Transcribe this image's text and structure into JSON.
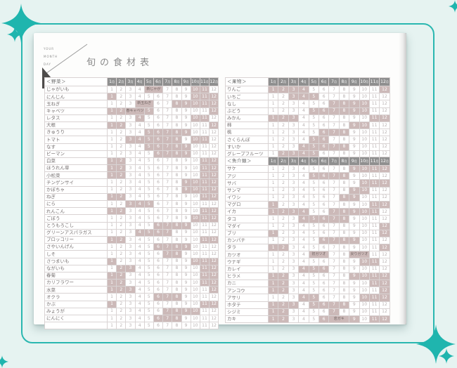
{
  "page": {
    "logo_lines": [
      "YOUR",
      "MONTH",
      "DAY"
    ],
    "title": "旬の食材表"
  },
  "months": {
    "numbers": [
      "1",
      "2",
      "3",
      "4",
      "5",
      "6",
      "7",
      "8",
      "9",
      "10",
      "11",
      "12"
    ],
    "suffix": "月"
  },
  "colors": {
    "accent": "#2ab7b0",
    "highlight": "#ccb9b8",
    "header_gray": "#8f8f8f"
  },
  "tables": [
    {
      "id": "veg-table",
      "group": "＜野菜＞",
      "rows": [
        {
          "label": "じゃがいも",
          "highlight": [
            10,
            11
          ],
          "merges": [
            {
              "start": 5,
              "end": 6,
              "label": "新じゃが"
            }
          ]
        },
        {
          "label": "にんじん",
          "highlight": [
            1,
            10,
            11,
            12
          ]
        },
        {
          "label": "玉ねぎ",
          "highlight": [
            8,
            9,
            10,
            11,
            12
          ],
          "merges": [
            {
              "start": 4,
              "end": 5,
              "label": "新玉ねぎ"
            }
          ]
        },
        {
          "label": "キャベツ",
          "highlight": [
            1,
            2,
            5,
            12
          ],
          "merges": [
            {
              "start": 3,
              "end": 4,
              "label": "春キャベツ"
            }
          ]
        },
        {
          "label": "レタス",
          "highlight": [
            4,
            10,
            11
          ]
        },
        {
          "label": "大根",
          "highlight": [
            1,
            2,
            12
          ]
        },
        {
          "label": "きゅうり",
          "highlight": [
            5,
            6,
            7,
            8,
            9
          ]
        },
        {
          "label": "トマト",
          "highlight": [
            3,
            4,
            5,
            6,
            7,
            8,
            10,
            11
          ]
        },
        {
          "label": "なす",
          "highlight": [
            5,
            6,
            7,
            8,
            9
          ]
        },
        {
          "label": "ピーマン",
          "highlight": [
            6,
            7,
            8,
            9
          ]
        },
        {
          "label": "白菜",
          "highlight": [
            1,
            2,
            11,
            12
          ]
        },
        {
          "label": "ほうれん草",
          "highlight": [
            1,
            2,
            11,
            12
          ]
        },
        {
          "label": "小松菜",
          "highlight": [
            1,
            2,
            11,
            12
          ]
        },
        {
          "label": "チンゲンサイ",
          "highlight": [
            9,
            10,
            11,
            12
          ]
        },
        {
          "label": "かぼちゃ",
          "highlight": [
            9,
            10,
            11,
            12
          ]
        },
        {
          "label": "ねぎ",
          "highlight": [
            1,
            2,
            11,
            12
          ]
        },
        {
          "label": "にら",
          "highlight": [
            3,
            4,
            5
          ]
        },
        {
          "label": "れんこん",
          "highlight": [
            1,
            2,
            11,
            12
          ]
        },
        {
          "label": "ごぼう",
          "highlight": [
            10,
            11,
            12
          ]
        },
        {
          "label": "とうもろこし",
          "highlight": [
            6,
            7,
            8,
            9
          ]
        },
        {
          "label": "グリーンアスパラガス",
          "highlight": [
            4,
            5,
            6,
            7
          ]
        },
        {
          "label": "ブロッコリー",
          "highlight": [
            1,
            2,
            11,
            12
          ]
        },
        {
          "label": "さやいんげん",
          "highlight": [
            6,
            7,
            8,
            9
          ]
        },
        {
          "label": "しそ",
          "highlight": [
            7,
            8
          ]
        },
        {
          "label": "さつまいも",
          "highlight": [
            1,
            10,
            11,
            12
          ]
        },
        {
          "label": "ながいも",
          "highlight": [
            2,
            3,
            11,
            12
          ]
        },
        {
          "label": "春菊",
          "highlight": [
            1,
            2,
            11,
            12
          ]
        },
        {
          "label": "カリフラワー",
          "highlight": [
            1,
            2,
            11,
            12
          ]
        },
        {
          "label": "水菜",
          "highlight": [
            1,
            2,
            3,
            12
          ]
        },
        {
          "label": "オクラ",
          "highlight": [
            6,
            7,
            8
          ]
        },
        {
          "label": "かぶ",
          "highlight": [
            1,
            11,
            12
          ]
        },
        {
          "label": "みょうが",
          "highlight": [
            7,
            8,
            9,
            10
          ]
        },
        {
          "label": "にんにく",
          "highlight": [
            6,
            7,
            8
          ]
        },
        {
          "label": "",
          "highlight": []
        }
      ]
    },
    {
      "id": "fruit-table",
      "group": "＜果物＞",
      "rows": [
        {
          "label": "りんご",
          "highlight": [
            1,
            2,
            3,
            4,
            12
          ]
        },
        {
          "label": "いちご",
          "highlight": [
            3,
            4,
            5
          ]
        },
        {
          "label": "なし",
          "highlight": [
            7,
            8,
            9,
            10
          ]
        },
        {
          "label": "ぶどう",
          "highlight": [
            5,
            6,
            7,
            8,
            9,
            10
          ]
        },
        {
          "label": "みかん",
          "highlight": [
            1,
            2,
            3,
            11,
            12
          ]
        },
        {
          "label": "柿",
          "highlight": [
            9,
            10
          ]
        },
        {
          "label": "桃",
          "highlight": [
            6,
            7,
            8
          ]
        },
        {
          "label": "さくらんぼ",
          "highlight": [
            5,
            6
          ]
        },
        {
          "label": "すいか",
          "highlight": [
            4,
            5,
            6,
            7,
            8
          ]
        },
        {
          "label": "グレープフルーツ",
          "highlight": [
            2,
            3,
            4,
            5
          ]
        }
      ]
    },
    {
      "id": "fish-table",
      "group": "＜魚介類＞",
      "rows": [
        {
          "label": "サケ",
          "highlight": [
            9,
            10,
            11,
            12
          ]
        },
        {
          "label": "アジ",
          "highlight": [
            5,
            6,
            7,
            8
          ]
        },
        {
          "label": "サバ",
          "highlight": [
            10,
            11,
            12
          ]
        },
        {
          "label": "サンマ",
          "highlight": [
            9,
            10
          ]
        },
        {
          "label": "イワシ",
          "highlight": [
            8,
            9
          ]
        },
        {
          "label": "マグロ",
          "highlight": [
            1,
            11,
            12
          ]
        },
        {
          "label": "イカ",
          "highlight": [
            1,
            2,
            3,
            4,
            7,
            8,
            9,
            10,
            11
          ]
        },
        {
          "label": "タコ",
          "highlight": [
            4,
            5,
            6,
            7,
            8
          ]
        },
        {
          "label": "マダイ",
          "highlight": [
            12
          ]
        },
        {
          "label": "ブリ",
          "highlight": [
            1,
            12
          ]
        },
        {
          "label": "カンパチ",
          "highlight": [
            6,
            7,
            8,
            9
          ]
        },
        {
          "label": "タラ",
          "highlight": [
            1,
            2,
            12
          ]
        },
        {
          "label": "カツオ",
          "highlight": [],
          "merges": [
            {
              "start": 5,
              "end": 6,
              "label": "初ガツオ"
            },
            {
              "start": 9,
              "end": 10,
              "label": "戻りガツオ"
            }
          ]
        },
        {
          "label": "ウナギ",
          "highlight": [
            10,
            11
          ]
        },
        {
          "label": "カレイ",
          "highlight": [
            4,
            5,
            6
          ]
        },
        {
          "label": "ヒラメ",
          "highlight": [
            1,
            2,
            9,
            10,
            11,
            12
          ]
        },
        {
          "label": "カニ",
          "highlight": [
            1,
            2,
            11,
            12
          ]
        },
        {
          "label": "アンコウ",
          "highlight": [
            1,
            2,
            12
          ]
        },
        {
          "label": "アサリ",
          "highlight": [
            4,
            5,
            10,
            11,
            12
          ]
        },
        {
          "label": "ホタテ",
          "highlight": [
            1,
            2,
            3,
            5,
            6,
            7,
            8
          ]
        },
        {
          "label": "シジミ",
          "highlight": [
            1,
            2,
            7
          ]
        },
        {
          "label": "カキ",
          "highlight": [
            1,
            2,
            6,
            9,
            11,
            12
          ],
          "merges": [
            {
              "start": 7,
              "end": 8,
              "label": "岩ガキ"
            }
          ]
        }
      ]
    }
  ]
}
